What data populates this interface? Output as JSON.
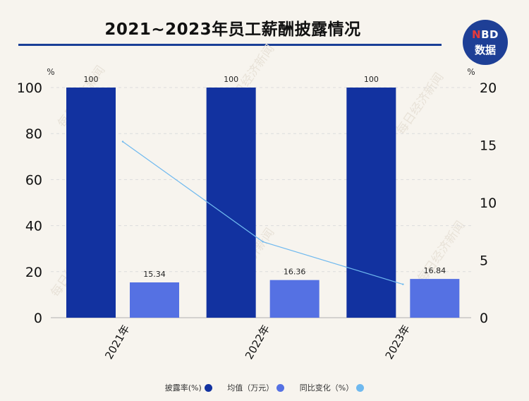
{
  "header": {
    "title": "2021~2023年员工薪酬披露情况",
    "logo_line1_accent": "N",
    "logo_line1_rest": "BD",
    "logo_line2": "数据"
  },
  "watermark": "每日经济新闻",
  "colors": {
    "background": "#f7f4ee",
    "brand": "#1e3f96",
    "series_rate": "#1232a0",
    "series_avg": "#5571e3",
    "series_yoy": "#6fb9ef"
  },
  "chart_data": {
    "type": "bar",
    "categories": [
      "2021年",
      "2022年",
      "2023年"
    ],
    "series": [
      {
        "name": "披露率(%)",
        "type": "bar",
        "axis": "left",
        "values": [
          100,
          100,
          100
        ],
        "labels": [
          "100",
          "100",
          "100"
        ]
      },
      {
        "name": "均值（万元）",
        "type": "bar",
        "axis": "left",
        "values": [
          15.34,
          16.36,
          16.84
        ],
        "labels": [
          "15.34",
          "16.36",
          "16.84"
        ]
      },
      {
        "name": "同比变化（%）",
        "type": "line",
        "axis": "right",
        "values": [
          15.3,
          6.6,
          2.9
        ]
      }
    ],
    "y_left": {
      "unit": "%",
      "min": 0,
      "max": 100,
      "ticks": [
        "0",
        "20",
        "40",
        "60",
        "80",
        "100"
      ]
    },
    "y_right": {
      "unit": "%",
      "min": 0,
      "max": 20,
      "ticks": [
        "0",
        "5",
        "10",
        "15",
        "20"
      ]
    },
    "grid": true,
    "legend_position": "bottom"
  }
}
